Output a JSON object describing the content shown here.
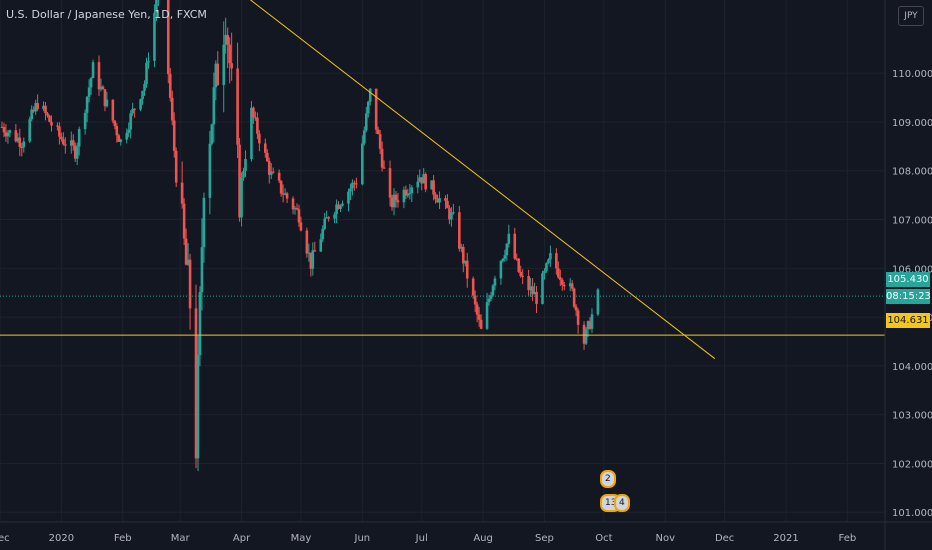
{
  "title": "U.S. Dollar / Japanese Yen, 1D, FXCM",
  "currency": "JPY",
  "colors": {
    "background": "#131722",
    "grid": "#1e222d",
    "up": "#26a69a",
    "down": "#ef5350",
    "trendline": "#f5c518",
    "axis_text": "#b2b5be"
  },
  "price_labels": {
    "current": "105.430",
    "countdown": "08:15:23",
    "support": "104.631"
  },
  "events": {
    "dividends_badge": "2",
    "earnings_badge": "13",
    "splits_badge": "4"
  },
  "chart_data": {
    "type": "candlestick",
    "y_range": [
      100.8,
      111.5
    ],
    "y_ticks": [
      101,
      102,
      103,
      104,
      105,
      106,
      107,
      108,
      109,
      110
    ],
    "y_tick_labels": [
      "101.000",
      "102.000",
      "103.000",
      "104.000",
      "105.000",
      "106.000",
      "107.000",
      "108.000",
      "109.000",
      "110.000"
    ],
    "x_range": [
      "2019-12-01",
      "2021-02-20"
    ],
    "x_ticks": [
      {
        "date": "2019-12-01",
        "label": "Dec"
      },
      {
        "date": "2020-01-01",
        "label": "2020"
      },
      {
        "date": "2020-02-01",
        "label": "Feb"
      },
      {
        "date": "2020-03-01",
        "label": "Mar"
      },
      {
        "date": "2020-04-01",
        "label": "Apr"
      },
      {
        "date": "2020-05-01",
        "label": "May"
      },
      {
        "date": "2020-06-01",
        "label": "Jun"
      },
      {
        "date": "2020-07-01",
        "label": "Jul"
      },
      {
        "date": "2020-08-01",
        "label": "Aug"
      },
      {
        "date": "2020-09-01",
        "label": "Sep"
      },
      {
        "date": "2020-10-01",
        "label": "Oct"
      },
      {
        "date": "2020-11-01",
        "label": "Nov"
      },
      {
        "date": "2020-12-01",
        "label": "Dec"
      },
      {
        "date": "2021-01-01",
        "label": "2021"
      },
      {
        "date": "2021-02-01",
        "label": "Feb"
      }
    ],
    "current_price": 105.43,
    "horizontal_level": 104.631,
    "trendline": {
      "start": {
        "date": "2020-04-04",
        "value": 111.55
      },
      "end": {
        "date": "2020-11-26",
        "value": 104.15
      }
    },
    "close_path": [
      {
        "date": "2019-12-02",
        "value": 108.9
      },
      {
        "date": "2019-12-12",
        "value": 108.6
      },
      {
        "date": "2019-12-20",
        "value": 109.4
      },
      {
        "date": "2019-12-31",
        "value": 108.7
      },
      {
        "date": "2020-01-08",
        "value": 108.4
      },
      {
        "date": "2020-01-17",
        "value": 110.1
      },
      {
        "date": "2020-01-31",
        "value": 108.6
      },
      {
        "date": "2020-02-12",
        "value": 109.8
      },
      {
        "date": "2020-02-20",
        "value": 112.1
      },
      {
        "date": "2020-02-28",
        "value": 107.9
      },
      {
        "date": "2020-03-06",
        "value": 105.3
      },
      {
        "date": "2020-03-09",
        "value": 102.4
      },
      {
        "date": "2020-03-13",
        "value": 107.9
      },
      {
        "date": "2020-03-24",
        "value": 111.3
      },
      {
        "date": "2020-03-31",
        "value": 107.5
      },
      {
        "date": "2020-04-06",
        "value": 109.2
      },
      {
        "date": "2020-04-16",
        "value": 107.9
      },
      {
        "date": "2020-04-30",
        "value": 107.1
      },
      {
        "date": "2020-05-06",
        "value": 106.1
      },
      {
        "date": "2020-05-15",
        "value": 107.1
      },
      {
        "date": "2020-05-29",
        "value": 107.8
      },
      {
        "date": "2020-06-05",
        "value": 109.6
      },
      {
        "date": "2020-06-15",
        "value": 107.3
      },
      {
        "date": "2020-06-30",
        "value": 107.9
      },
      {
        "date": "2020-07-07",
        "value": 107.6
      },
      {
        "date": "2020-07-17",
        "value": 107.0
      },
      {
        "date": "2020-07-31",
        "value": 104.7
      },
      {
        "date": "2020-08-07",
        "value": 105.9
      },
      {
        "date": "2020-08-14",
        "value": 106.6
      },
      {
        "date": "2020-08-20",
        "value": 105.8
      },
      {
        "date": "2020-08-28",
        "value": 105.4
      },
      {
        "date": "2020-09-04",
        "value": 106.2
      },
      {
        "date": "2020-09-15",
        "value": 105.5
      },
      {
        "date": "2020-09-21",
        "value": 104.5
      },
      {
        "date": "2020-09-28",
        "value": 105.43
      }
    ]
  }
}
